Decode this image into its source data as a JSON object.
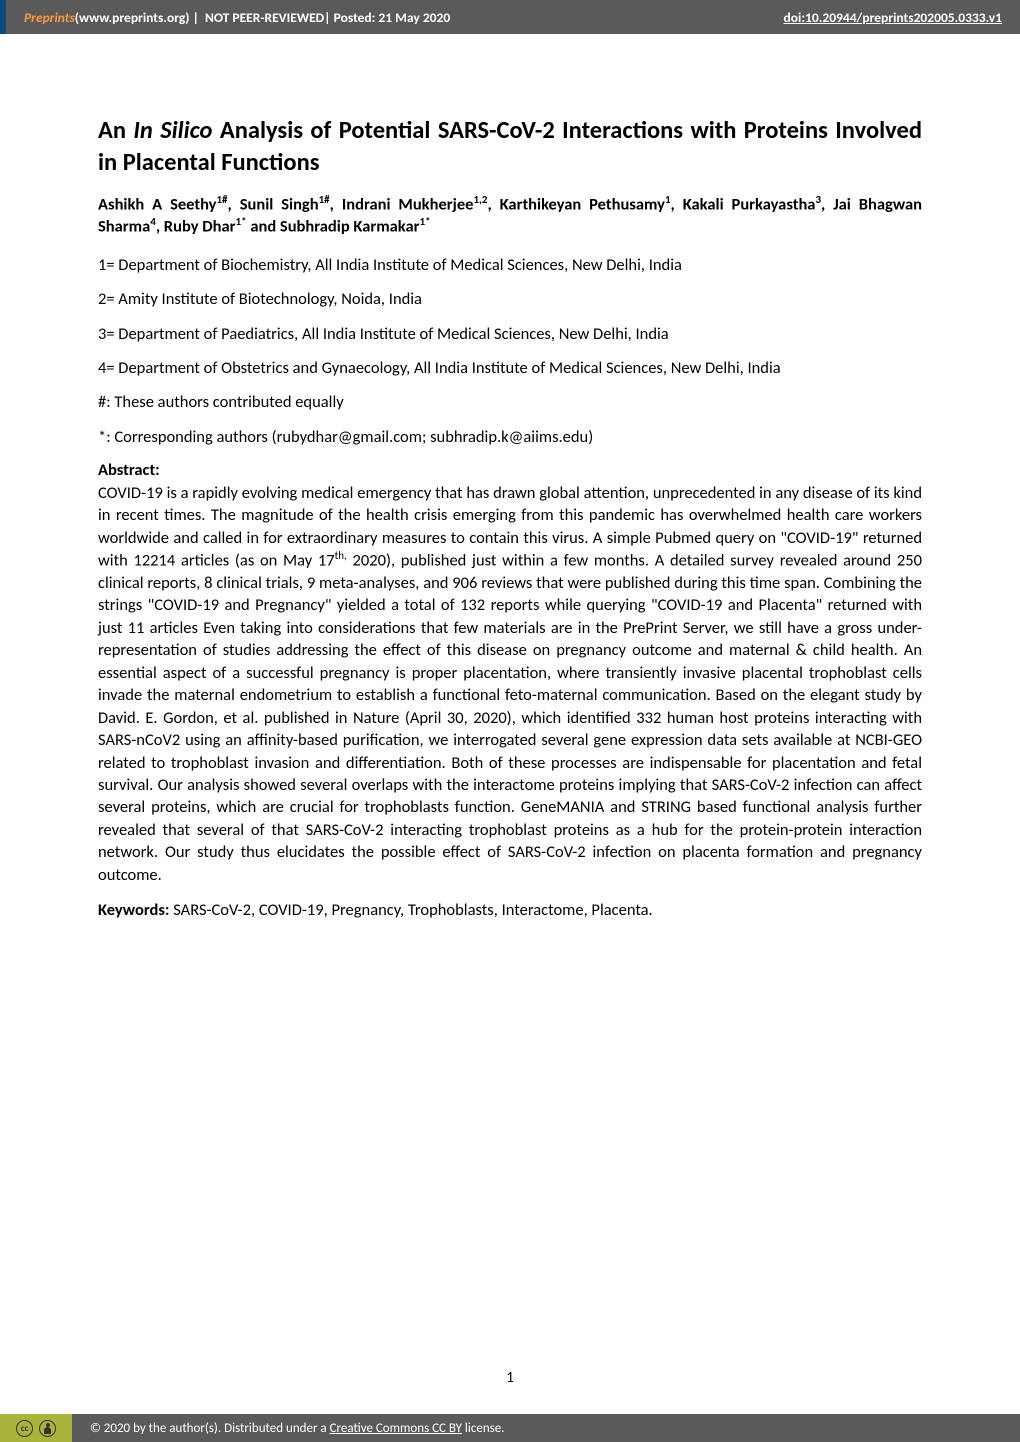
{
  "header": {
    "site_name": "Preprints",
    "site_url": " (www.preprints.org)  |  ",
    "review_status": "NOT PEER-REVIEWED",
    "posted": "  |  Posted: 21 May 2020",
    "doi": "doi:10.20944/preprints202005.0333.v1"
  },
  "title_pre": "An ",
  "title_italic": "In Silico",
  "title_post": " Analysis of Potential SARS-CoV-2 Interactions with Proteins Involved in Placental Functions",
  "authors_html": "Ashikh A Seethy<sup>1#</sup>, Sunil Singh<sup>1#</sup>, Indrani Mukherjee<sup>1,2</sup>, Karthikeyan Pethusamy<sup>1</sup>, Kakali Purkayastha<sup>3</sup>, Jai Bhagwan Sharma<sup>4</sup>, Ruby Dhar<sup>1*</sup> and Subhradip Karmakar<sup>1*</sup>",
  "affiliations": [
    "1= Department of Biochemistry, All India Institute of Medical Sciences, New Delhi, India",
    "2= Amity Institute of Biotechnology, Noida, India",
    "3= Department of Paediatrics, All India Institute of Medical Sciences, New Delhi, India",
    "4= Department of Obstetrics and Gynaecology, All India Institute of Medical Sciences, New Delhi, India",
    "#: These authors contributed equally",
    "*: Corresponding authors (rubydhar@gmail.com; subhradip.k@aiims.edu)"
  ],
  "abstract_heading": "Abstract:",
  "abstract_body_html": "COVID-19 is a rapidly evolving medical emergency that has drawn global attention, unprecedented in any disease of its kind in recent times. The magnitude of the health crisis emerging from this pandemic has overwhelmed health care workers worldwide and called in for extraordinary measures to contain this virus. A simple Pubmed query on \"COVID-19\" returned with 12214 articles (as on May 17<sup>th,</sup> 2020), published just within a few months. A detailed survey revealed around 250 clinical reports, 8 clinical trials, 9 meta-analyses, and 906 reviews that were published during this time span. Combining the strings \"COVID-19 and Pregnancy\" yielded a total of 132 reports while querying  \"COVID-19 and Placenta\" returned with just 11 articles  Even taking into considerations that few materials are in the PrePrint Server, we still have a gross under-representation of studies addressing the effect of this disease on pregnancy outcome and maternal & child health. An essential aspect of a successful pregnancy is proper placentation, where transiently invasive placental trophoblast cells invade the maternal endometrium to establish a functional feto-maternal communication. Based on the elegant study by David. E. Gordon, et al. published in Nature (April 30, 2020), which identified 332 human host proteins interacting with SARS-nCoV2 using an affinity-based purification, we interrogated several gene expression data sets available at NCBI-GEO related to trophoblast invasion and differentiation. Both of these processes are indispensable for placentation and fetal survival. Our analysis showed several overlaps with the interactome proteins implying that SARS-CoV-2 infection can affect several proteins, which are crucial for trophoblasts function. GeneMANIA and STRING based functional analysis further revealed that several of that SARS-CoV-2 interacting trophoblast proteins as a hub for the protein-protein interaction network. Our study thus elucidates the possible effect of SARS-CoV-2 infection on placenta formation and pregnancy outcome.",
  "keywords_label": "Keywords: ",
  "keywords_text": "SARS-CoV-2, COVID-19, Pregnancy, Trophoblasts, Interactome, Placenta.",
  "page_number": "1",
  "footer": {
    "copyright": "©  2020 by the author(s). Distributed under a ",
    "license_link": "Creative Commons CC BY",
    "license_suffix": " license."
  },
  "colors": {
    "header_bg": "#5a5a5a",
    "header_accent": "#0a4a7a",
    "site_orange": "#ff9a3c",
    "footer_bg": "#5a5a5a",
    "cc_badge_bg": "#aab43a",
    "text": "#000000",
    "page_bg": "#ffffff"
  },
  "typography": {
    "body_family": "Calibri",
    "title_size_pt": 18,
    "body_size_pt": 12,
    "header_size_pt": 10
  }
}
